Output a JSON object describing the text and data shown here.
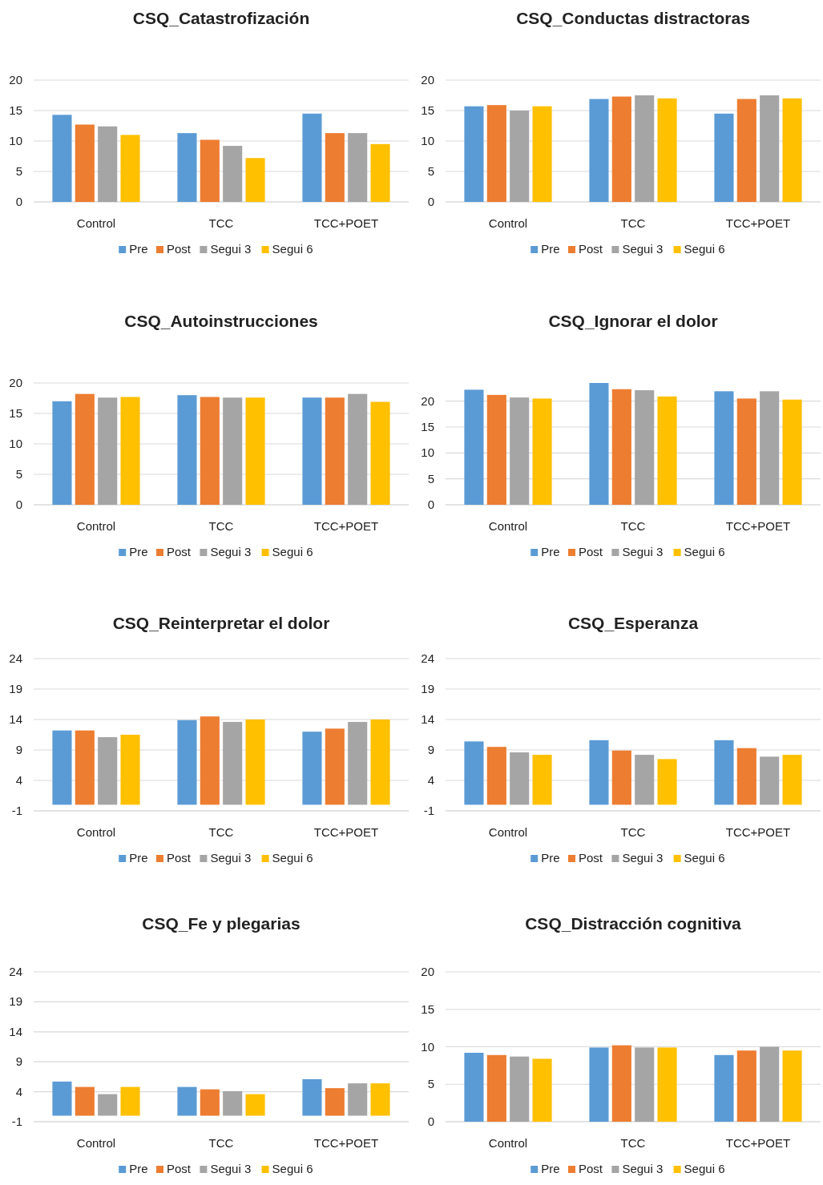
{
  "chart_data": [
    {
      "type": "bar",
      "title": "CSQ_Catastrofización",
      "categories": [
        "Control",
        "TCC",
        "TCC+POET"
      ],
      "ylim": [
        0,
        20
      ],
      "yticks": [
        0,
        5,
        10,
        15,
        20
      ],
      "grid": "y",
      "legend": "bottom",
      "series": [
        {
          "name": "Pre",
          "color": "#5b9bd5",
          "values": [
            14.3,
            11.3,
            14.5
          ]
        },
        {
          "name": "Post",
          "color": "#ed7d31",
          "values": [
            12.7,
            10.2,
            11.3
          ]
        },
        {
          "name": "Segui 3",
          "color": "#a5a5a5",
          "values": [
            12.4,
            9.2,
            11.3
          ]
        },
        {
          "name": "Segui 6",
          "color": "#ffc000",
          "values": [
            11.0,
            7.2,
            9.5
          ]
        }
      ]
    },
    {
      "type": "bar",
      "title": "CSQ_Conductas distractoras",
      "categories": [
        "Control",
        "TCC",
        "TCC+POET"
      ],
      "ylim": [
        0,
        20
      ],
      "yticks": [
        0,
        5,
        10,
        15,
        20
      ],
      "grid": "y",
      "legend": "bottom",
      "series": [
        {
          "name": "Pre",
          "color": "#5b9bd5",
          "values": [
            15.7,
            16.9,
            14.5
          ]
        },
        {
          "name": "Post",
          "color": "#ed7d31",
          "values": [
            15.9,
            17.3,
            16.9
          ]
        },
        {
          "name": "Segui 3",
          "color": "#a5a5a5",
          "values": [
            15.0,
            17.5,
            17.5
          ]
        },
        {
          "name": "Segui 6",
          "color": "#ffc000",
          "values": [
            15.7,
            17.0,
            17.0
          ]
        }
      ]
    },
    {
      "type": "bar",
      "title": "CSQ_Autoinstrucciones",
      "categories": [
        "Control",
        "TCC",
        "TCC+POET"
      ],
      "ylim": [
        0,
        20
      ],
      "yticks": [
        0,
        5,
        10,
        15,
        20
      ],
      "grid": "y",
      "legend": "bottom",
      "series": [
        {
          "name": "Pre",
          "color": "#5b9bd5",
          "values": [
            17.0,
            18.0,
            17.6
          ]
        },
        {
          "name": "Post",
          "color": "#ed7d31",
          "values": [
            18.2,
            17.7,
            17.6
          ]
        },
        {
          "name": "Segui 3",
          "color": "#a5a5a5",
          "values": [
            17.6,
            17.6,
            18.2
          ]
        },
        {
          "name": "Segui 6",
          "color": "#ffc000",
          "values": [
            17.7,
            17.6,
            16.9
          ]
        }
      ]
    },
    {
      "type": "bar",
      "title": "CSQ_Ignorar el dolor",
      "categories": [
        "Control",
        "TCC",
        "TCC+POET"
      ],
      "ylim": [
        0,
        23.5
      ],
      "yticks": [
        0,
        5,
        10,
        15,
        20
      ],
      "grid": "y",
      "legend": "bottom",
      "series": [
        {
          "name": "Pre",
          "color": "#5b9bd5",
          "values": [
            22.2,
            23.5,
            21.9
          ]
        },
        {
          "name": "Post",
          "color": "#ed7d31",
          "values": [
            21.2,
            22.3,
            20.5
          ]
        },
        {
          "name": "Segui 3",
          "color": "#a5a5a5",
          "values": [
            20.7,
            22.1,
            21.9
          ]
        },
        {
          "name": "Segui 6",
          "color": "#ffc000",
          "values": [
            20.5,
            20.9,
            20.3
          ]
        }
      ]
    },
    {
      "type": "bar",
      "title": "CSQ_Reinterpretar el dolor",
      "categories": [
        "Control",
        "TCC",
        "TCC+POET"
      ],
      "ylim": [
        -1,
        24
      ],
      "yticks": [
        -1,
        4,
        9,
        14,
        19,
        24
      ],
      "grid": "y",
      "legend": "bottom",
      "series": [
        {
          "name": "Pre",
          "color": "#5b9bd5",
          "values": [
            12.2,
            13.9,
            12.0
          ]
        },
        {
          "name": "Post",
          "color": "#ed7d31",
          "values": [
            12.2,
            14.5,
            12.5
          ]
        },
        {
          "name": "Segui 3",
          "color": "#a5a5a5",
          "values": [
            11.1,
            13.6,
            13.6
          ]
        },
        {
          "name": "Segui 6",
          "color": "#ffc000",
          "values": [
            11.5,
            14.0,
            14.0
          ]
        }
      ]
    },
    {
      "type": "bar",
      "title": "CSQ_Esperanza",
      "categories": [
        "Control",
        "TCC",
        "TCC+POET"
      ],
      "ylim": [
        -1,
        24
      ],
      "yticks": [
        -1,
        4,
        9,
        14,
        19,
        24
      ],
      "grid": "y",
      "legend": "bottom",
      "series": [
        {
          "name": "Pre",
          "color": "#5b9bd5",
          "values": [
            10.4,
            10.6,
            10.6
          ]
        },
        {
          "name": "Post",
          "color": "#ed7d31",
          "values": [
            9.5,
            8.9,
            9.3
          ]
        },
        {
          "name": "Segui 3",
          "color": "#a5a5a5",
          "values": [
            8.6,
            8.2,
            7.9
          ]
        },
        {
          "name": "Segui 6",
          "color": "#ffc000",
          "values": [
            8.2,
            7.5,
            8.2
          ]
        }
      ]
    },
    {
      "type": "bar",
      "title": "CSQ_Fe y plegarias",
      "categories": [
        "Control",
        "TCC",
        "TCC+POET"
      ],
      "ylim": [
        -1,
        24
      ],
      "yticks": [
        -1,
        4,
        9,
        14,
        19,
        24
      ],
      "grid": "y",
      "legend": "bottom",
      "series": [
        {
          "name": "Pre",
          "color": "#5b9bd5",
          "values": [
            5.7,
            4.8,
            6.1
          ]
        },
        {
          "name": "Post",
          "color": "#ed7d31",
          "values": [
            4.8,
            4.4,
            4.6
          ]
        },
        {
          "name": "Segui 3",
          "color": "#a5a5a5",
          "values": [
            3.6,
            4.1,
            5.4
          ]
        },
        {
          "name": "Segui 6",
          "color": "#ffc000",
          "values": [
            4.8,
            3.6,
            5.4
          ]
        }
      ]
    },
    {
      "type": "bar",
      "title": "CSQ_Distracción cognitiva",
      "categories": [
        "Control",
        "TCC",
        "TCC+POET"
      ],
      "ylim": [
        0,
        20
      ],
      "yticks": [
        0,
        5,
        10,
        15,
        20
      ],
      "grid": "y",
      "legend": "bottom",
      "series": [
        {
          "name": "Pre",
          "color": "#5b9bd5",
          "values": [
            9.2,
            9.9,
            8.9
          ]
        },
        {
          "name": "Post",
          "color": "#ed7d31",
          "values": [
            8.9,
            10.2,
            9.5
          ]
        },
        {
          "name": "Segui 3",
          "color": "#a5a5a5",
          "values": [
            8.7,
            9.9,
            10.0
          ]
        },
        {
          "name": "Segui 6",
          "color": "#ffc000",
          "values": [
            8.4,
            9.9,
            9.5
          ]
        }
      ]
    }
  ]
}
